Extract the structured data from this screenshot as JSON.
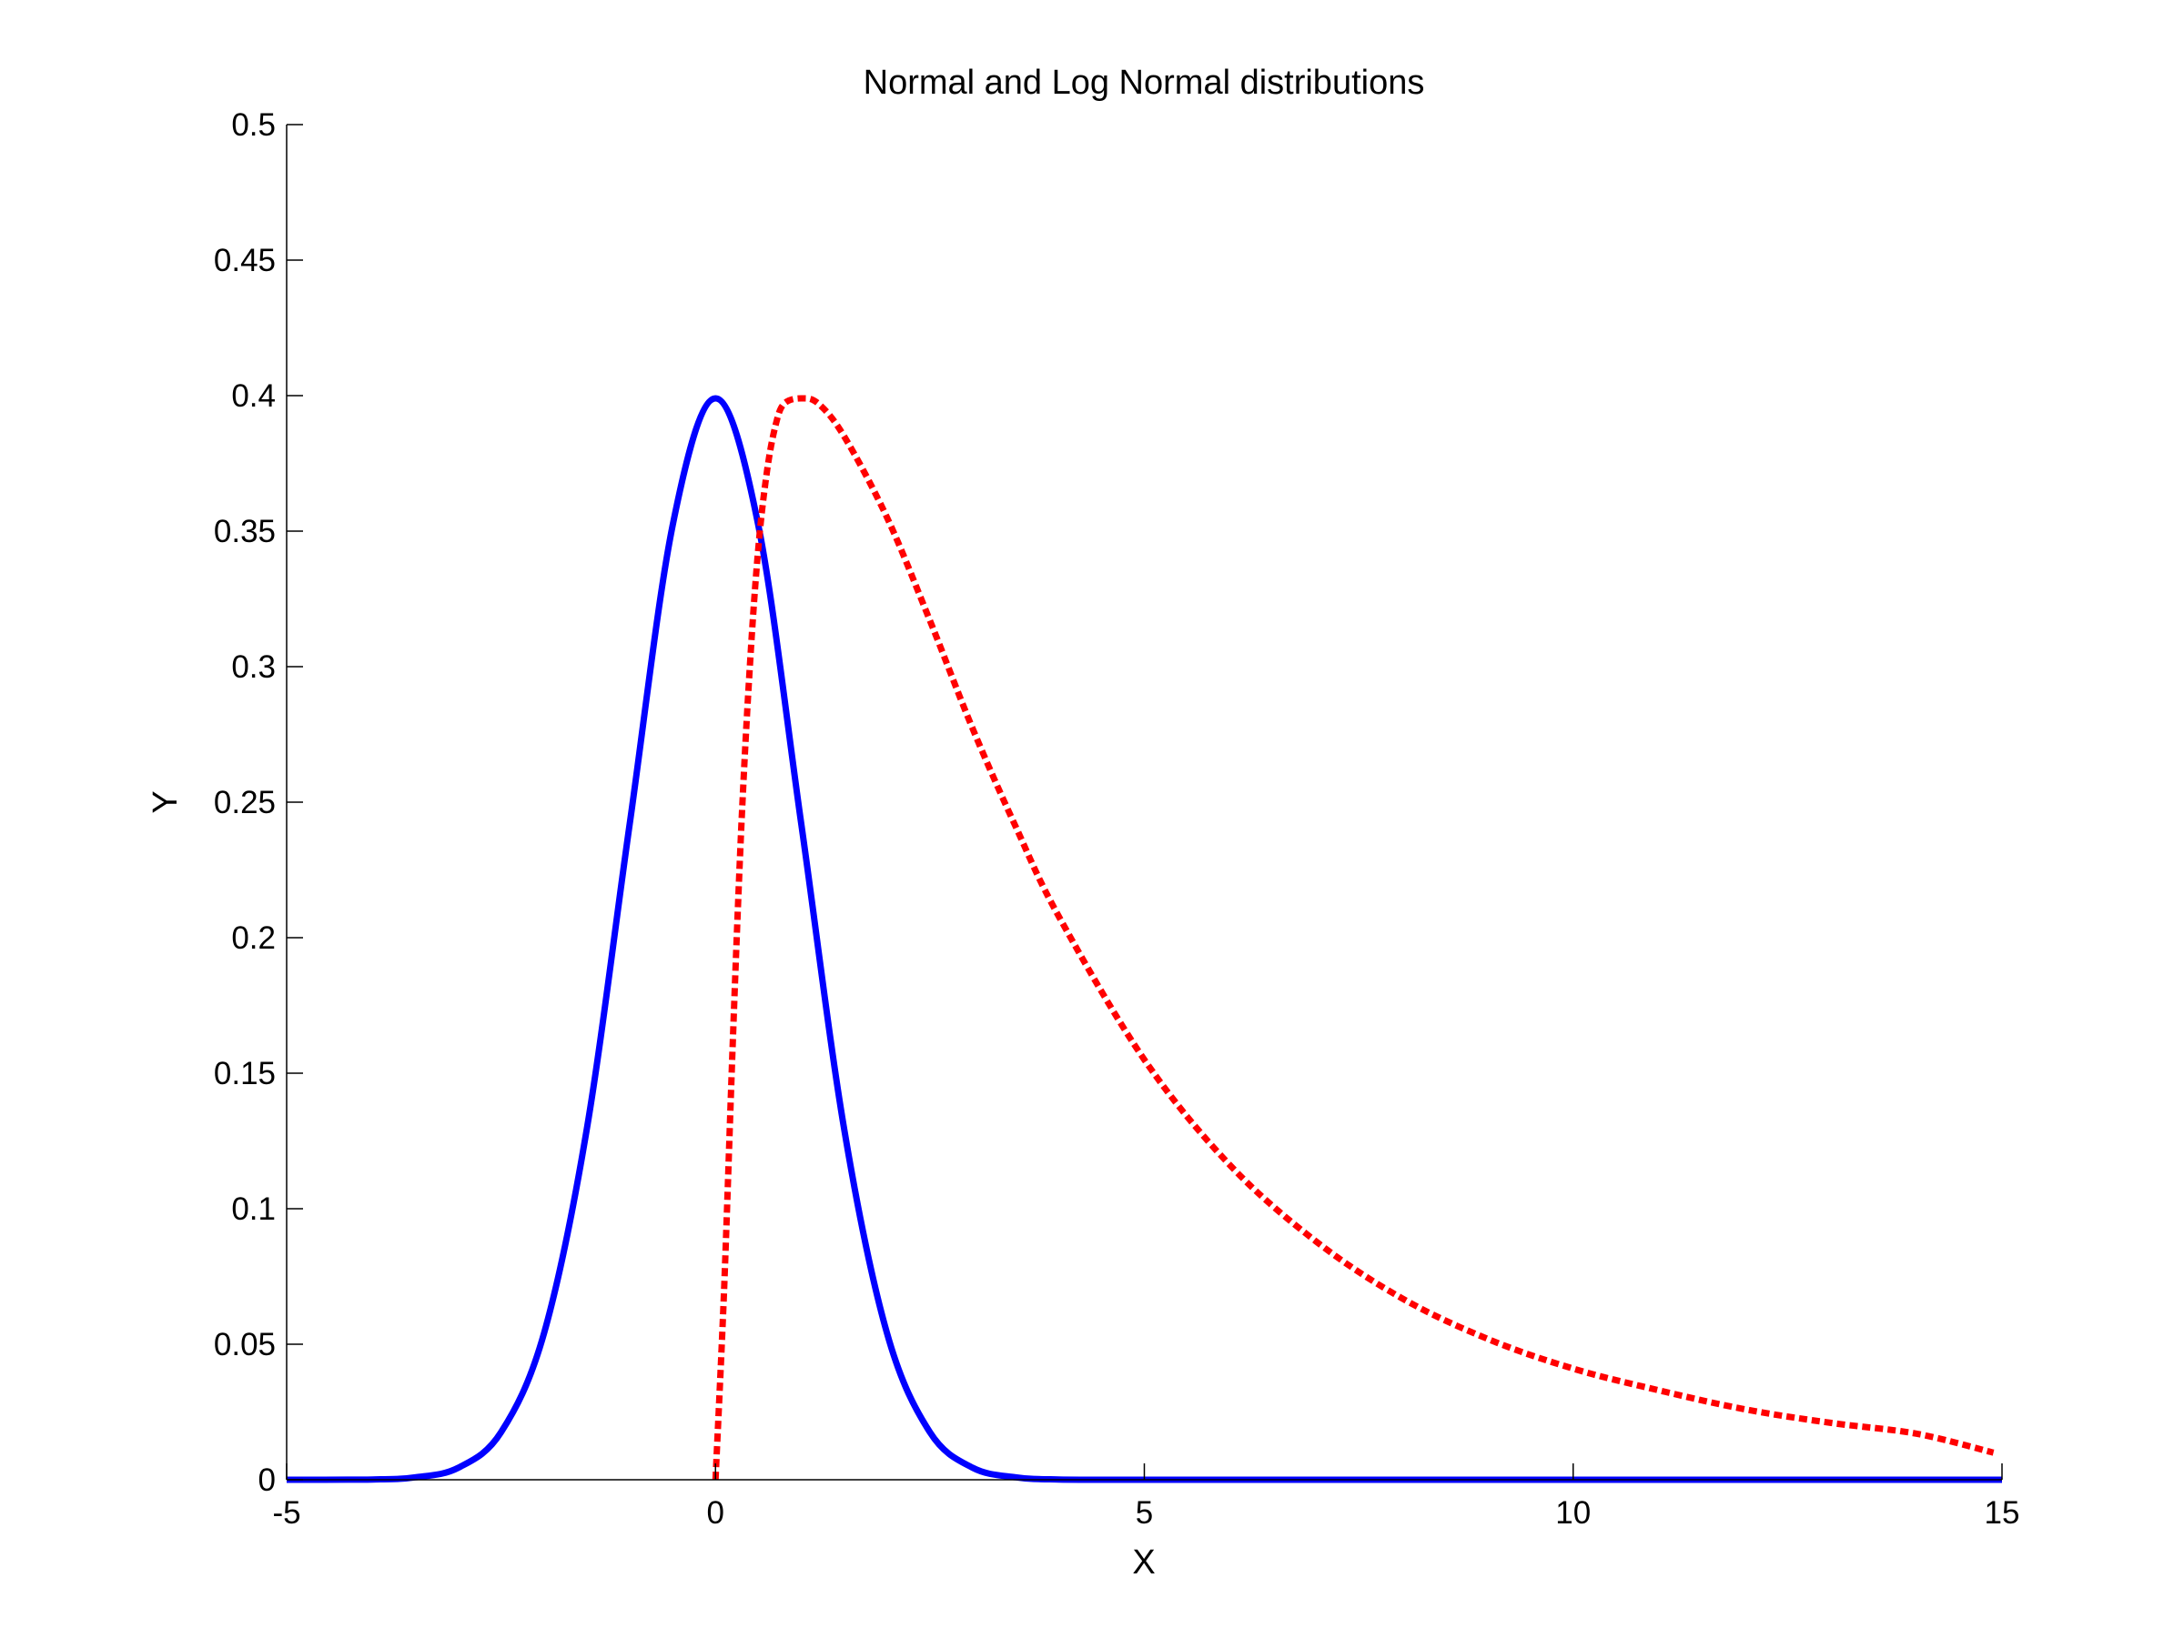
{
  "chart_data": {
    "type": "line",
    "title": "Normal and Log Normal distributions",
    "xlabel": "X",
    "ylabel": "Y",
    "xlim": [
      -5,
      15
    ],
    "ylim": [
      0,
      0.5
    ],
    "xticks": [
      -5,
      0,
      5,
      10,
      15
    ],
    "xtick_labels": [
      "-5",
      "0",
      "5",
      "10",
      "15"
    ],
    "yticks": [
      0,
      0.05,
      0.1,
      0.15,
      0.2,
      0.25,
      0.3,
      0.35,
      0.4,
      0.45,
      0.5
    ],
    "ytick_labels": [
      "0",
      "0.05",
      "0.1",
      "0.15",
      "0.2",
      "0.25",
      "0.3",
      "0.35",
      "0.4",
      "0.45",
      "0.5"
    ],
    "grid": false,
    "legend": "none",
    "series": [
      {
        "style": "solid",
        "color": "#0000ff",
        "x": [
          -5,
          -4,
          -3.5,
          -3,
          -2.5,
          -2,
          -1.5,
          -1,
          -0.5,
          0,
          0.5,
          1,
          1.5,
          2,
          2.5,
          3,
          3.5,
          4,
          5,
          8,
          10,
          15
        ],
        "y": [
          0,
          0.0001,
          0.0009,
          0.0044,
          0.0175,
          0.054,
          0.1295,
          0.242,
          0.352,
          0.399,
          0.352,
          0.242,
          0.1295,
          0.054,
          0.0175,
          0.0044,
          0.0009,
          0.0001,
          0,
          0,
          0,
          0
        ]
      },
      {
        "style": "dotted",
        "color": "#ff0000",
        "x": [
          0,
          0.1,
          0.2,
          0.3,
          0.4,
          0.5,
          0.6,
          0.7,
          0.8,
          1,
          1.2,
          1.5,
          2,
          2.5,
          3,
          3.5,
          4,
          5,
          6,
          7,
          8,
          9,
          10,
          11,
          12,
          13,
          14,
          14.9
        ],
        "y": [
          0,
          0.07,
          0.16,
          0.24,
          0.3,
          0.344,
          0.372,
          0.389,
          0.397,
          0.399,
          0.397,
          0.385,
          0.355,
          0.317,
          0.277,
          0.241,
          0.208,
          0.155,
          0.116,
          0.088,
          0.067,
          0.052,
          0.041,
          0.033,
          0.026,
          0.021,
          0.017,
          0.01
        ]
      }
    ]
  }
}
